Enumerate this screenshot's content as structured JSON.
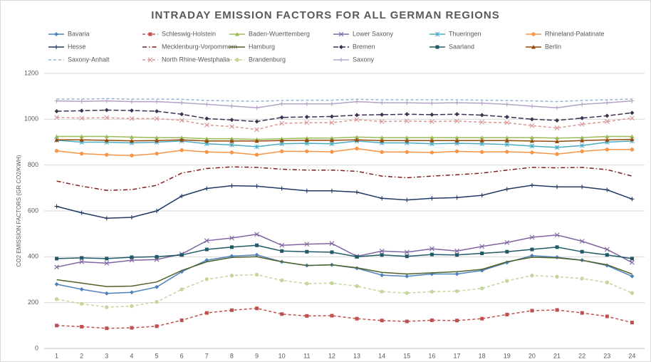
{
  "chart_data": {
    "type": "line",
    "title": "INTRADAY EMISSION FACTORS FOR ALL GERMAN REGIONS",
    "y_label": "CO2 EMISSION FACTORS (GR CO2/KWH)",
    "categories": [
      "1",
      "2",
      "3",
      "4",
      "5",
      "6",
      "7",
      "8",
      "9",
      "10",
      "11",
      "12",
      "13",
      "14",
      "15",
      "16",
      "17",
      "18",
      "19",
      "20",
      "21",
      "22",
      "23",
      "24"
    ],
    "ylim": [
      0,
      1200
    ],
    "yticks": [
      0,
      200,
      400,
      600,
      800,
      1000,
      1200
    ],
    "grid": true,
    "legend": "top",
    "series": [
      {
        "name": "Bavaria",
        "color": "#4f81bd",
        "marker": "diamond",
        "dash": "solid",
        "values": [
          280,
          258,
          240,
          245,
          268,
          335,
          385,
          403,
          408,
          378,
          362,
          365,
          350,
          320,
          315,
          325,
          325,
          340,
          375,
          405,
          398,
          385,
          362,
          315
        ]
      },
      {
        "name": "Schleswig-Holstein",
        "color": "#c0504d",
        "marker": "square",
        "dash": "dash",
        "values": [
          100,
          95,
          88,
          90,
          97,
          123,
          155,
          167,
          175,
          150,
          142,
          143,
          130,
          122,
          118,
          123,
          122,
          130,
          148,
          165,
          168,
          155,
          140,
          113
        ]
      },
      {
        "name": "Baden-Wuerttemberg",
        "color": "#9bbb59",
        "marker": "triangle",
        "dash": "solid",
        "values": [
          925,
          925,
          925,
          922,
          920,
          920,
          915,
          915,
          912,
          915,
          918,
          918,
          922,
          920,
          920,
          920,
          920,
          920,
          920,
          920,
          918,
          920,
          925,
          925
        ]
      },
      {
        "name": "Lower Saxony",
        "color": "#8064a2",
        "marker": "x",
        "dash": "solid",
        "values": [
          355,
          378,
          372,
          385,
          388,
          412,
          470,
          482,
          498,
          450,
          455,
          458,
          402,
          425,
          420,
          435,
          425,
          445,
          462,
          485,
          495,
          468,
          432,
          375
        ]
      },
      {
        "name": "Thueringen",
        "color": "#4bacc6",
        "marker": "star",
        "dash": "solid",
        "values": [
          908,
          900,
          900,
          897,
          900,
          905,
          893,
          888,
          880,
          893,
          895,
          893,
          905,
          897,
          897,
          893,
          895,
          893,
          890,
          883,
          877,
          885,
          900,
          905
        ]
      },
      {
        "name": "Rhineland-Palatinate",
        "color": "#f79646",
        "marker": "circle",
        "dash": "solid",
        "values": [
          862,
          850,
          845,
          842,
          850,
          865,
          857,
          855,
          845,
          860,
          860,
          858,
          872,
          857,
          857,
          855,
          860,
          857,
          858,
          855,
          848,
          860,
          868,
          868
        ]
      },
      {
        "name": "Hesse",
        "color": "#1f3864",
        "marker": "plus",
        "dash": "solid",
        "values": [
          620,
          592,
          568,
          572,
          600,
          665,
          698,
          710,
          708,
          698,
          688,
          688,
          682,
          655,
          648,
          655,
          658,
          668,
          695,
          712,
          705,
          705,
          692,
          652
        ]
      },
      {
        "name": "Mecklenburg-Vorpommern",
        "color": "#7f1f1f",
        "marker": "none",
        "dash": "dashdot",
        "values": [
          730,
          708,
          690,
          693,
          712,
          765,
          785,
          792,
          790,
          782,
          778,
          778,
          773,
          752,
          745,
          752,
          758,
          765,
          778,
          790,
          788,
          790,
          780,
          752
        ]
      },
      {
        "name": "Hamburg",
        "color": "#4f6228",
        "marker": "none",
        "dash": "solid",
        "values": [
          300,
          285,
          270,
          272,
          290,
          340,
          378,
          397,
          400,
          378,
          362,
          365,
          352,
          332,
          325,
          330,
          335,
          345,
          378,
          398,
          395,
          385,
          365,
          325
        ]
      },
      {
        "name": "Bremen",
        "color": "#3f3151",
        "marker": "diamond",
        "dash": "longdash",
        "values": [
          1035,
          1037,
          1040,
          1038,
          1035,
          1022,
          1003,
          997,
          990,
          1008,
          1010,
          1012,
          1018,
          1020,
          1022,
          1020,
          1022,
          1018,
          1010,
          1000,
          995,
          1005,
          1015,
          1028
        ]
      },
      {
        "name": "Saarland",
        "color": "#215967",
        "marker": "square",
        "dash": "solid",
        "values": [
          392,
          395,
          392,
          398,
          400,
          408,
          432,
          442,
          450,
          425,
          422,
          420,
          400,
          408,
          402,
          410,
          408,
          415,
          422,
          432,
          442,
          422,
          408,
          392
        ]
      },
      {
        "name": "Berlin",
        "color": "#974706",
        "marker": "triangle",
        "dash": "solid",
        "values": [
          910,
          910,
          908,
          906,
          907,
          910,
          905,
          905,
          905,
          907,
          908,
          908,
          910,
          907,
          907,
          907,
          907,
          907,
          907,
          905,
          903,
          907,
          910,
          912
        ]
      },
      {
        "name": "Saxony-Anhalt",
        "color": "#95b3d7",
        "marker": "none",
        "dash": "dash",
        "values": [
          1088,
          1088,
          1090,
          1088,
          1088,
          1087,
          1082,
          1080,
          1078,
          1082,
          1083,
          1083,
          1087,
          1085,
          1085,
          1085,
          1085,
          1083,
          1082,
          1080,
          1077,
          1082,
          1085,
          1088
        ]
      },
      {
        "name": "North Rhine-Westphalia",
        "color": "#d99694",
        "marker": "x",
        "dash": "dash",
        "values": [
          1008,
          1005,
          1007,
          1003,
          1003,
          995,
          975,
          968,
          955,
          982,
          985,
          985,
          998,
          990,
          992,
          990,
          992,
          987,
          985,
          972,
          962,
          978,
          990,
          1005
        ]
      },
      {
        "name": "Brandenburg",
        "color": "#c3d69b",
        "marker": "circle",
        "dash": "dash",
        "values": [
          215,
          195,
          180,
          185,
          203,
          258,
          302,
          318,
          322,
          297,
          283,
          285,
          272,
          248,
          242,
          248,
          250,
          262,
          295,
          318,
          313,
          305,
          288,
          242
        ]
      },
      {
        "name": "Saxony",
        "color": "#b3a2c7",
        "marker": "plus",
        "dash": "solid",
        "values": [
          1080,
          1078,
          1080,
          1077,
          1077,
          1072,
          1065,
          1058,
          1050,
          1067,
          1067,
          1067,
          1077,
          1072,
          1072,
          1070,
          1072,
          1070,
          1065,
          1057,
          1050,
          1065,
          1072,
          1080
        ]
      }
    ]
  }
}
